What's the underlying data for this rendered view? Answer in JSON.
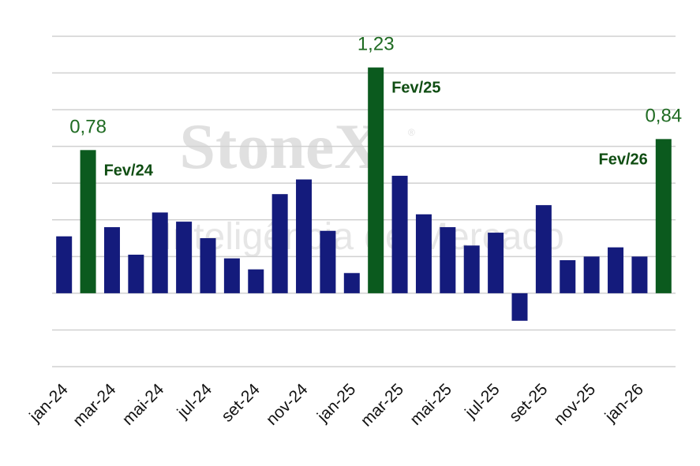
{
  "chart_data": {
    "type": "bar",
    "categories": [
      "jan-24",
      null,
      "mar-24",
      null,
      "mai-24",
      null,
      "jul-24",
      null,
      "set-24",
      null,
      "nov-24",
      null,
      "jan-25",
      null,
      "mar-25",
      null,
      "mai-25",
      null,
      "jul-25",
      null,
      "set-25",
      null,
      "nov-25",
      null,
      "jan-26",
      null
    ],
    "values": [
      0.31,
      0.78,
      0.36,
      0.21,
      0.44,
      0.39,
      0.3,
      0.19,
      0.13,
      0.54,
      0.62,
      0.34,
      0.11,
      1.23,
      0.64,
      0.43,
      0.36,
      0.26,
      0.33,
      -0.15,
      0.48,
      0.18,
      0.2,
      0.25,
      0.2,
      0.84
    ],
    "value_labels": [
      null,
      "0,78",
      null,
      null,
      null,
      null,
      null,
      null,
      null,
      null,
      null,
      null,
      null,
      "1,23",
      null,
      null,
      null,
      null,
      null,
      null,
      null,
      null,
      null,
      null,
      null,
      "0,84"
    ],
    "colors": [
      "#141b7c",
      "#0b5a1e",
      "#141b7c",
      "#141b7c",
      "#141b7c",
      "#141b7c",
      "#141b7c",
      "#141b7c",
      "#141b7c",
      "#141b7c",
      "#141b7c",
      "#141b7c",
      "#141b7c",
      "#0b5a1e",
      "#141b7c",
      "#141b7c",
      "#141b7c",
      "#141b7c",
      "#141b7c",
      "#141b7c",
      "#141b7c",
      "#141b7c",
      "#141b7c",
      "#141b7c",
      "#141b7c",
      "#0b5a1e"
    ],
    "annotations": [
      "Fev/24",
      "Fev/25",
      "Fev/26"
    ],
    "watermark": [
      "StoneX",
      "®",
      "Inteligência de Mercado"
    ],
    "ylim": [
      -0.4,
      1.4
    ],
    "yticks": [
      -0.4,
      -0.2,
      0,
      0.2,
      0.4,
      0.6,
      0.8,
      1.0,
      1.2,
      1.4
    ],
    "grid": true
  }
}
